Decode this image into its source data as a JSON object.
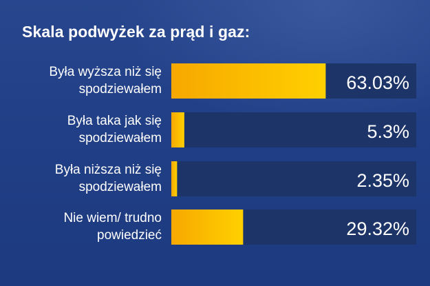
{
  "title": "Skala podwyżek za prąd i gaz:",
  "colors": {
    "bar_track": "#1d3469",
    "bar_fill_start": "#f7a800",
    "bar_fill_end": "#ffd000",
    "text": "#ffffff"
  },
  "chart_data": {
    "type": "bar",
    "orientation": "horizontal",
    "title": "Skala podwyżek za prąd i gaz:",
    "categories": [
      [
        "Była wyższa niż się",
        "spodziewałem"
      ],
      [
        "Była taka jak się",
        "spodziewałem"
      ],
      [
        "Była niższa niż się",
        "spodziewałem"
      ],
      [
        "Nie wiem/ trudno",
        "powiedzieć"
      ]
    ],
    "values": [
      63.03,
      5.3,
      2.35,
      29.32
    ],
    "value_labels": [
      "63.03%",
      "5.3%",
      "2.35%",
      "29.32%"
    ],
    "unit": "%",
    "xlim": [
      0,
      100
    ]
  }
}
